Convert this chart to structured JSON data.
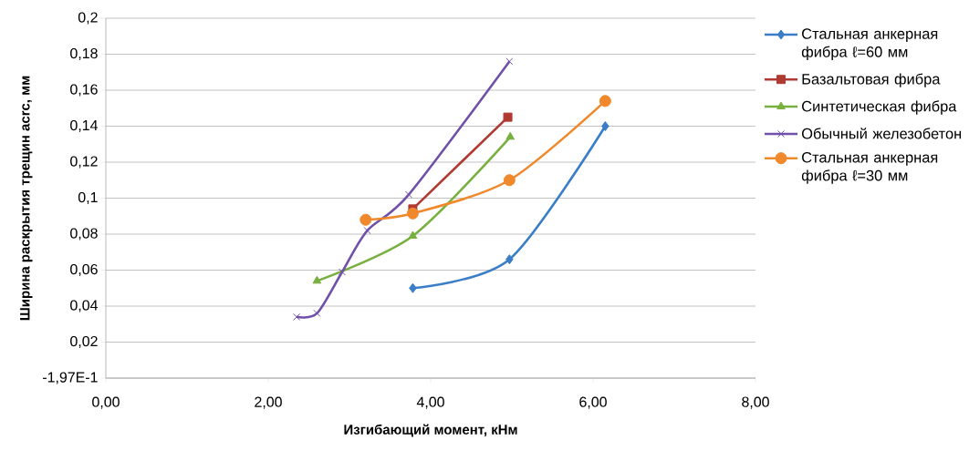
{
  "chart_data": {
    "type": "line",
    "xlabel": "Изгибающий момент, кНм",
    "ylabel": "Ширина раскрытия трещин acrc, мм",
    "xlim": [
      0,
      8
    ],
    "ylim": [
      0,
      0.2
    ],
    "xticks": [
      {
        "value": 0,
        "label": "0,00"
      },
      {
        "value": 2,
        "label": "2,00"
      },
      {
        "value": 4,
        "label": "4,00"
      },
      {
        "value": 6,
        "label": "6,00"
      },
      {
        "value": 8,
        "label": "8,00"
      }
    ],
    "yticks": [
      {
        "value": 0,
        "label": "-1,97E-1"
      },
      {
        "value": 0.02,
        "label": "0,02"
      },
      {
        "value": 0.04,
        "label": "0,04"
      },
      {
        "value": 0.06,
        "label": "0,06"
      },
      {
        "value": 0.08,
        "label": "0,08"
      },
      {
        "value": 0.1,
        "label": "0,1"
      },
      {
        "value": 0.12,
        "label": "0,12"
      },
      {
        "value": 0.14,
        "label": "0,14"
      },
      {
        "value": 0.16,
        "label": "0,16"
      },
      {
        "value": 0.18,
        "label": "0,18"
      },
      {
        "value": 0.2,
        "label": "0,2"
      }
    ],
    "grid": "y",
    "legend": "right",
    "series": [
      {
        "name": "Стальная анкерная фибра ℓ=60 мм",
        "color": "#3a7dc8",
        "marker": "diamond",
        "x": [
          3.78,
          4.97,
          6.15
        ],
        "values": [
          0.05,
          0.066,
          0.14
        ]
      },
      {
        "name": "Базальтовая фибра",
        "color": "#b03a32",
        "marker": "square",
        "x": [
          3.78,
          4.95
        ],
        "values": [
          0.094,
          0.145
        ]
      },
      {
        "name": "Синтетическая фибра",
        "color": "#78b040",
        "marker": "triangle",
        "x": [
          2.6,
          3.78,
          4.98
        ],
        "values": [
          0.054,
          0.079,
          0.134
        ]
      },
      {
        "name": "Обычный железобетон",
        "color": "#7050a8",
        "marker": "cross",
        "x": [
          2.35,
          2.6,
          2.91,
          3.22,
          3.73,
          4.97
        ],
        "values": [
          0.034,
          0.036,
          0.059,
          0.082,
          0.102,
          0.176
        ]
      },
      {
        "name": "Стальная анкерная фибра ℓ=30 мм",
        "color": "#f0882c",
        "marker": "circle",
        "x": [
          3.2,
          3.78,
          4.97,
          6.15
        ],
        "values": [
          0.088,
          0.0915,
          0.11,
          0.154
        ]
      }
    ]
  }
}
